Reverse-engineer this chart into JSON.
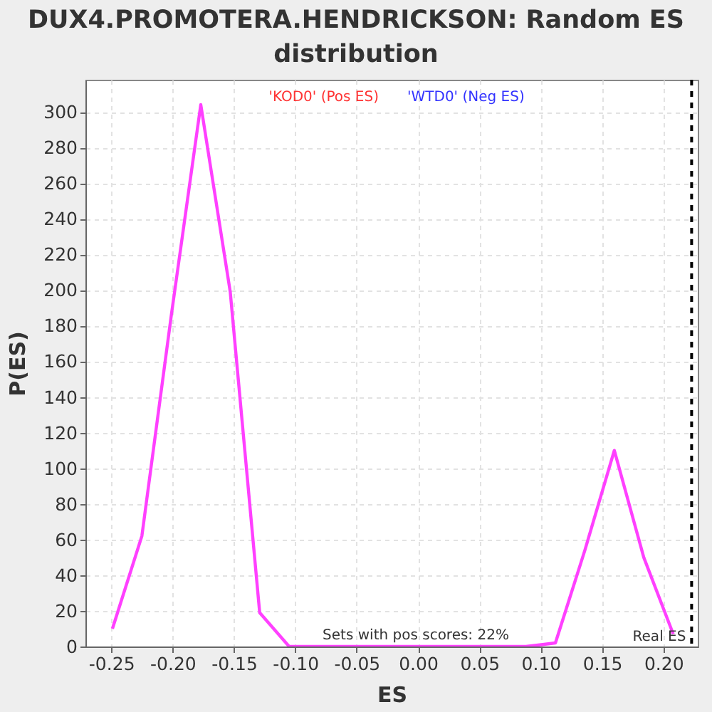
{
  "chart_data": {
    "type": "line",
    "title": "DUX4.PROMOTERA.HENDRICKSON: Random ES distribution",
    "xlabel": "ES",
    "ylabel": "P(ES)",
    "series": [
      {
        "color": "#ff40ff",
        "x": [
          -0.249,
          -0.225,
          -0.201,
          -0.177,
          -0.153,
          -0.129,
          -0.105,
          -0.081,
          -0.057,
          -0.032,
          -0.008,
          0.016,
          0.04,
          0.064,
          0.088,
          0.112,
          0.136,
          0.16,
          0.184,
          0.208
        ],
        "values": [
          10,
          62,
          186,
          304,
          199,
          19,
          0,
          0,
          0,
          0,
          0,
          0,
          0,
          0,
          0,
          2,
          54,
          110,
          50,
          7
        ]
      }
    ],
    "xlim": [
      -0.271,
      0.228
    ],
    "ylim": [
      0,
      318
    ],
    "xticks": [
      -0.25,
      {
        "value": -0.2,
        "label": "-0.20"
      },
      -0.15,
      {
        "value": -0.1,
        "label": "-0.10"
      },
      -0.05,
      {
        "value": 0,
        "label": "0.00"
      },
      0.05,
      {
        "value": 0.1,
        "label": "0.10"
      },
      0.15,
      {
        "value": 0.2,
        "label": "0.20"
      }
    ],
    "yticks": [
      0,
      20,
      40,
      60,
      80,
      100,
      120,
      140,
      160,
      180,
      200,
      220,
      240,
      260,
      280,
      300
    ],
    "ref_lines": [
      {
        "axis": "x",
        "value": 0.223,
        "label": "Real ES",
        "color": "#000000",
        "line_style": "dashed"
      }
    ],
    "annotations": [
      "'KOD0' (Pos ES)",
      "'WTD0' (Neg ES)",
      "Sets with pos scores: 22%"
    ],
    "grid": true,
    "marker": "none",
    "line_style": "solid"
  }
}
